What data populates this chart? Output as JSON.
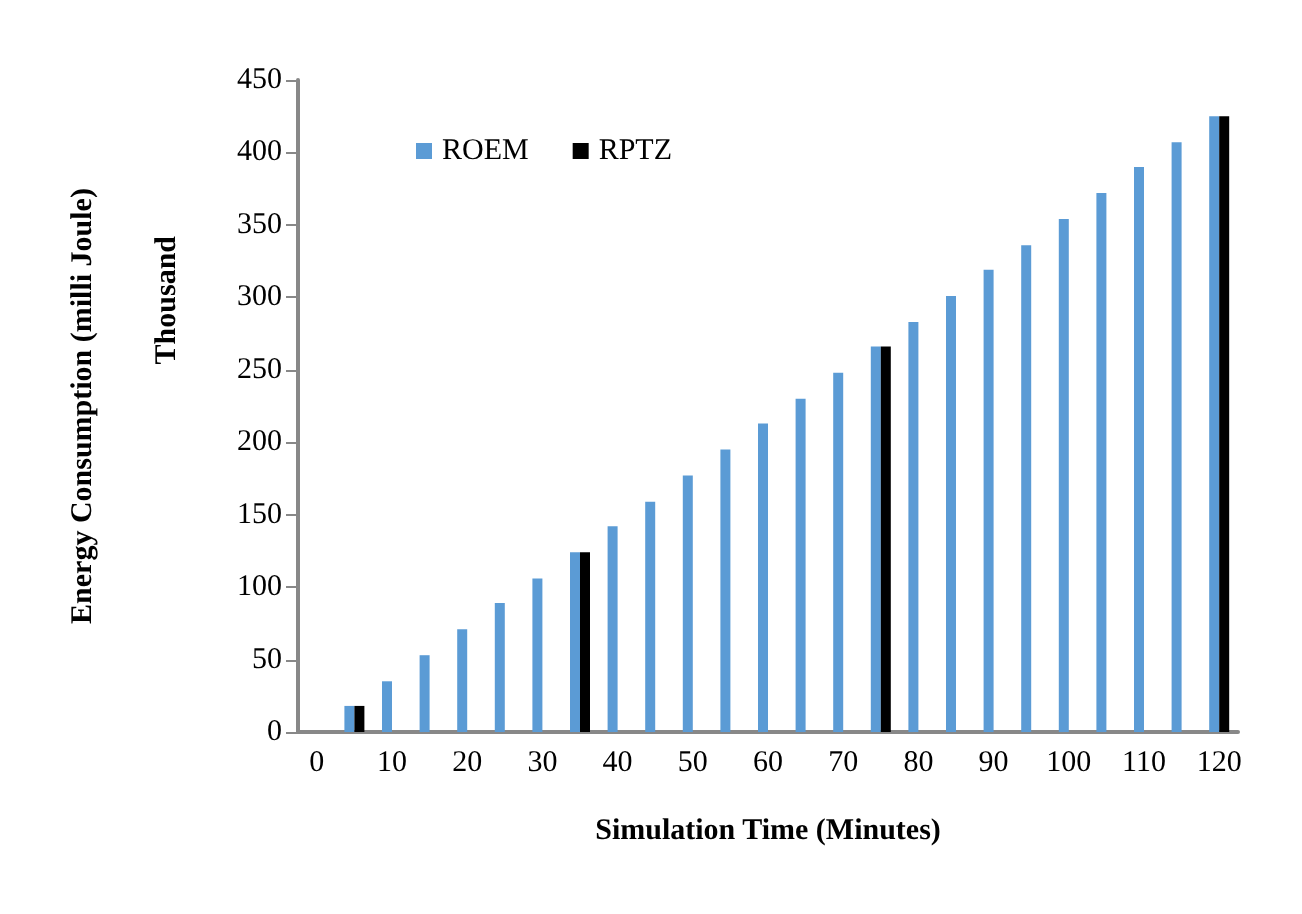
{
  "chart_data": {
    "type": "bar",
    "xlabel": "Simulation Time (Minutes)",
    "ylabel": "Energy Consumption (milli Joule)",
    "annotations": [
      "Thousand"
    ],
    "categories": [
      "0",
      null,
      "10",
      null,
      "20",
      null,
      "30",
      null,
      "40",
      null,
      "50",
      null,
      "60",
      null,
      "70",
      null,
      "80",
      null,
      "90",
      null,
      "100",
      null,
      "110",
      null,
      "120"
    ],
    "series": [
      {
        "name": "ROEM",
        "color": "#5b9bd5",
        "values": [
          null,
          18,
          35,
          53,
          71,
          89,
          106,
          124,
          142,
          159,
          177,
          195,
          213,
          230,
          248,
          266,
          283,
          301,
          319,
          336,
          354,
          372,
          390,
          407,
          425
        ]
      },
      {
        "name": "RPTZ",
        "color": "#000000",
        "values": [
          null,
          18,
          null,
          null,
          null,
          null,
          null,
          124,
          null,
          null,
          null,
          null,
          null,
          null,
          null,
          266,
          null,
          null,
          null,
          null,
          null,
          null,
          null,
          null,
          425
        ]
      }
    ],
    "ylim": [
      0,
      450
    ],
    "yticks": [
      0,
      50,
      100,
      150,
      200,
      250,
      300,
      350,
      400,
      450
    ],
    "grid": false,
    "legend": "top left"
  }
}
